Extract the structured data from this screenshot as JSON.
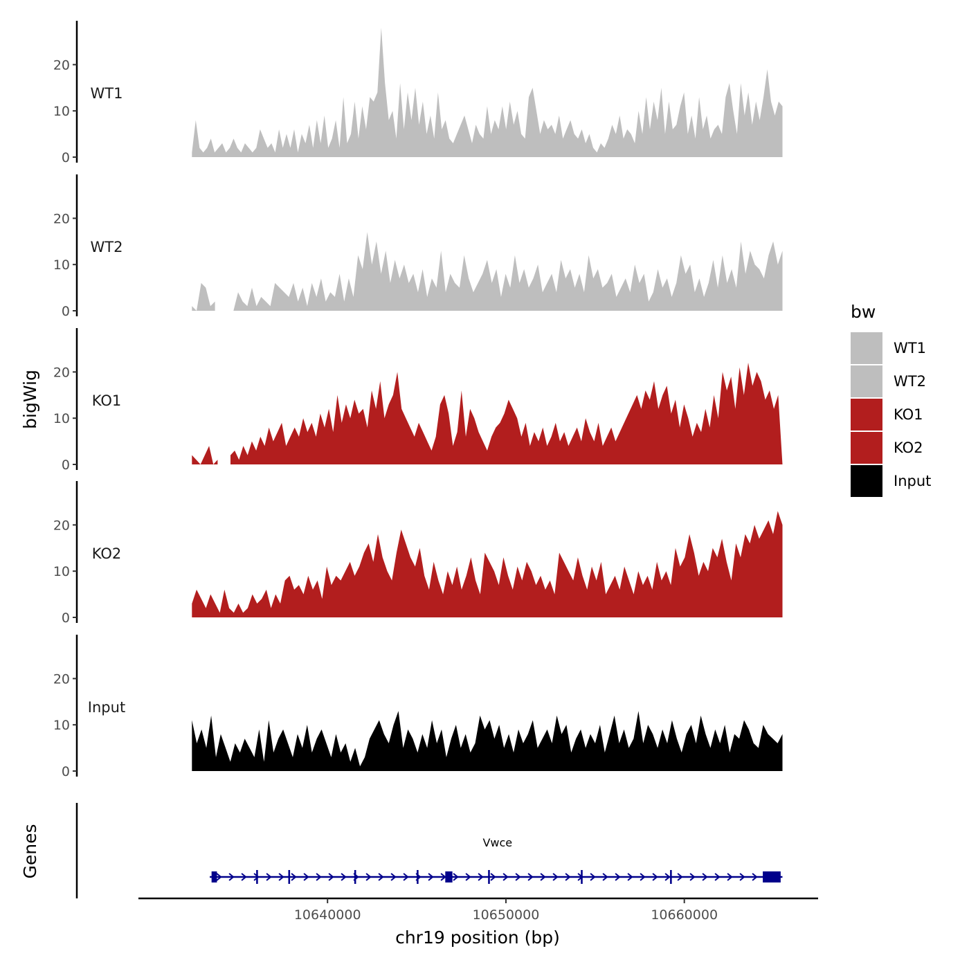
{
  "chart_data": {
    "type": "area",
    "y_axis_title": "bigWig",
    "genes_axis_title": "Genes",
    "x_axis_title": "chr19 position (bp)",
    "x_range": [
      10632400,
      10665500
    ],
    "x_axis_limits": [
      10629400,
      10667500
    ],
    "x_ticks": [
      10640000,
      10650000,
      10660000
    ],
    "x_tick_labels": [
      "10640000",
      "10650000",
      "10660000"
    ],
    "y_range": [
      0,
      28
    ],
    "y_ticks": [
      0,
      10,
      20
    ],
    "y_tick_labels": [
      "0",
      "10",
      "20"
    ],
    "legend": {
      "title": "bw",
      "entries": [
        {
          "label": "WT1",
          "color": "#bebebe"
        },
        {
          "label": "WT2",
          "color": "#bebebe"
        },
        {
          "label": "KO1",
          "color": "#b21e1e"
        },
        {
          "label": "KO2",
          "color": "#b21e1e"
        },
        {
          "label": "Input",
          "color": "#000000"
        }
      ]
    },
    "tracks": [
      {
        "name": "WT1",
        "color": "#bebebe",
        "values": [
          1,
          8,
          2,
          1,
          2,
          4,
          1,
          2,
          3,
          1,
          2,
          4,
          2,
          1,
          3,
          2,
          1,
          2,
          6,
          4,
          2,
          3,
          1,
          6,
          2,
          5,
          2,
          6,
          1,
          5,
          3,
          7,
          2,
          8,
          3,
          9,
          2,
          4,
          8,
          2,
          13,
          3,
          5,
          12,
          4,
          11,
          6,
          13,
          12,
          14,
          28,
          16,
          8,
          10,
          4,
          16,
          6,
          14,
          8,
          15,
          7,
          12,
          5,
          9,
          4,
          14,
          6,
          8,
          4,
          3,
          5,
          7,
          9,
          6,
          3,
          7,
          5,
          4,
          11,
          5,
          8,
          6,
          11,
          6,
          12,
          7,
          10,
          5,
          4,
          13,
          15,
          10,
          5,
          8,
          6,
          7,
          5,
          9,
          4,
          6,
          8,
          5,
          4,
          6,
          3,
          5,
          2,
          1,
          3,
          2,
          4,
          7,
          5,
          9,
          4,
          6,
          5,
          3,
          10,
          5,
          13,
          6,
          12,
          8,
          15,
          5,
          12,
          6,
          7,
          11,
          14,
          5,
          9,
          4,
          13,
          6,
          9,
          4,
          6,
          7,
          5,
          13,
          16,
          10,
          5,
          16,
          9,
          14,
          7,
          12,
          8,
          13,
          19,
          12,
          9,
          12,
          11
        ],
        "gaps": []
      },
      {
        "name": "WT2",
        "color": "#bebebe",
        "values": [
          1,
          0,
          6,
          5,
          1,
          2,
          0,
          1,
          0,
          0,
          4,
          2,
          1,
          5,
          1,
          3,
          2,
          1,
          6,
          5,
          4,
          3,
          6,
          2,
          5,
          1,
          6,
          3,
          7,
          2,
          4,
          3,
          8,
          2,
          7,
          3,
          12,
          9,
          17,
          10,
          15,
          8,
          13,
          6,
          11,
          7,
          10,
          6,
          8,
          4,
          9,
          3,
          7,
          5,
          13,
          4,
          8,
          6,
          5,
          12,
          7,
          4,
          6,
          8,
          11,
          6,
          9,
          3,
          8,
          5,
          12,
          6,
          9,
          5,
          7,
          10,
          4,
          6,
          8,
          4,
          11,
          7,
          9,
          5,
          8,
          4,
          12,
          7,
          9,
          5,
          6,
          8,
          3,
          5,
          7,
          4,
          10,
          6,
          8,
          2,
          4,
          9,
          5,
          7,
          3,
          6,
          12,
          8,
          10,
          4,
          7,
          3,
          6,
          11,
          5,
          12,
          6,
          9,
          5,
          15,
          8,
          13,
          10,
          9,
          7,
          12,
          15,
          10,
          13
        ],
        "gaps": [
          [
            10633900,
            10634700
          ]
        ]
      },
      {
        "name": "KO1",
        "color": "#b21e1e",
        "values": [
          2,
          1,
          0,
          2,
          4,
          0,
          1,
          3,
          1,
          2,
          3,
          1,
          4,
          2,
          5,
          3,
          6,
          4,
          8,
          5,
          7,
          9,
          4,
          6,
          8,
          6,
          10,
          7,
          9,
          6,
          11,
          8,
          12,
          7,
          15,
          9,
          13,
          10,
          14,
          11,
          12,
          8,
          16,
          12,
          18,
          10,
          13,
          15,
          20,
          12,
          10,
          8,
          6,
          9,
          7,
          5,
          3,
          6,
          13,
          15,
          11,
          4,
          7,
          16,
          6,
          12,
          10,
          7,
          5,
          3,
          6,
          8,
          9,
          11,
          14,
          12,
          10,
          6,
          9,
          4,
          7,
          5,
          8,
          4,
          6,
          9,
          5,
          7,
          4,
          6,
          8,
          5,
          10,
          7,
          5,
          9,
          4,
          6,
          8,
          5,
          7,
          9,
          11,
          13,
          15,
          12,
          16,
          14,
          18,
          12,
          15,
          17,
          11,
          14,
          8,
          13,
          10,
          6,
          9,
          7,
          12,
          8,
          15,
          10,
          20,
          16,
          19,
          12,
          21,
          15,
          22,
          17,
          20,
          18,
          14,
          16,
          12,
          15,
          0
        ],
        "gaps": [
          [
            10633950,
            10634450
          ]
        ]
      },
      {
        "name": "KO2",
        "color": "#b21e1e",
        "values": [
          3,
          6,
          4,
          2,
          5,
          3,
          1,
          6,
          2,
          1,
          3,
          1,
          2,
          5,
          3,
          4,
          6,
          2,
          5,
          3,
          8,
          9,
          6,
          7,
          5,
          9,
          6,
          8,
          4,
          11,
          7,
          9,
          8,
          10,
          12,
          9,
          11,
          14,
          16,
          12,
          18,
          13,
          10,
          8,
          14,
          19,
          16,
          13,
          11,
          15,
          9,
          6,
          12,
          8,
          5,
          10,
          7,
          11,
          6,
          9,
          13,
          8,
          5,
          14,
          12,
          10,
          7,
          13,
          9,
          6,
          11,
          8,
          12,
          10,
          7,
          9,
          6,
          8,
          5,
          14,
          12,
          10,
          8,
          13,
          9,
          6,
          11,
          8,
          12,
          5,
          7,
          9,
          6,
          11,
          8,
          5,
          10,
          7,
          9,
          6,
          12,
          8,
          10,
          7,
          15,
          11,
          13,
          18,
          14,
          9,
          12,
          10,
          15,
          13,
          17,
          12,
          8,
          16,
          13,
          18,
          16,
          20,
          17,
          19,
          21,
          18,
          23,
          20
        ],
        "gaps": []
      },
      {
        "name": "Input",
        "color": "#000000",
        "values": [
          11,
          6,
          9,
          5,
          12,
          3,
          8,
          5,
          2,
          6,
          4,
          7,
          5,
          3,
          9,
          2,
          11,
          4,
          7,
          9,
          6,
          3,
          8,
          5,
          10,
          4,
          7,
          9,
          6,
          3,
          8,
          4,
          6,
          2,
          5,
          1,
          3,
          7,
          9,
          11,
          8,
          6,
          10,
          13,
          5,
          9,
          7,
          4,
          8,
          5,
          11,
          6,
          9,
          3,
          7,
          10,
          5,
          8,
          4,
          6,
          12,
          9,
          11,
          7,
          10,
          5,
          8,
          4,
          9,
          6,
          8,
          11,
          5,
          7,
          9,
          6,
          12,
          8,
          10,
          4,
          7,
          9,
          5,
          8,
          6,
          10,
          4,
          8,
          12,
          6,
          9,
          5,
          7,
          13,
          6,
          10,
          8,
          5,
          9,
          6,
          11,
          7,
          4,
          8,
          10,
          6,
          12,
          8,
          5,
          9,
          6,
          10,
          4,
          8,
          7,
          11,
          9,
          6,
          5,
          10,
          8,
          7,
          6,
          8
        ],
        "gaps": []
      }
    ],
    "genes": [
      {
        "name": "Vwce",
        "start": 10633400,
        "end": 10665500,
        "strand": "+",
        "exons": [
          [
            10633500,
            10633800
          ],
          [
            10636000,
            10636100
          ],
          [
            10637800,
            10637900
          ],
          [
            10641500,
            10641600
          ],
          [
            10645000,
            10645100
          ],
          [
            10646600,
            10647000
          ],
          [
            10649000,
            10649100
          ],
          [
            10654200,
            10654300
          ],
          [
            10659200,
            10659300
          ],
          [
            10664400,
            10665400
          ]
        ]
      }
    ]
  }
}
